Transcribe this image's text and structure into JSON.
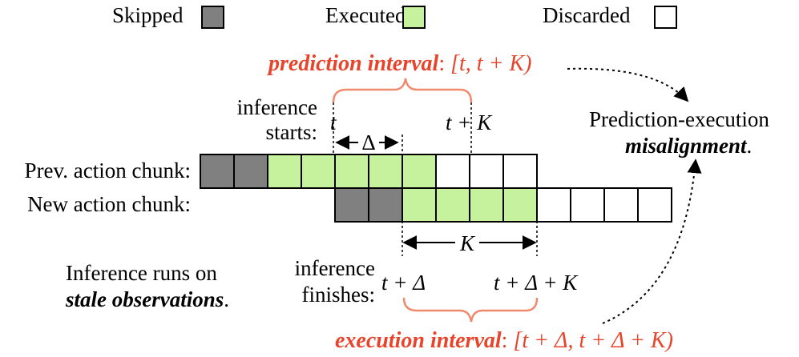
{
  "legend": {
    "skipped": "Skipped",
    "executed": "Executed",
    "discarded": "Discarded"
  },
  "colors": {
    "skipped": "#808080",
    "executed": "#c6f29e",
    "discarded": "#ffffff",
    "accent": "#e8432b",
    "bracket": "#f08a6e"
  },
  "prediction": {
    "label": "prediction interval",
    "colon": ": ",
    "range": "[t, t + K)"
  },
  "execution": {
    "label": "execution interval",
    "colon": ": ",
    "range": "[t + Δ, t + Δ + K)"
  },
  "inference_start": {
    "line1": "inference",
    "line2": "starts:",
    "t": "t",
    "t_plus_k": "t + K",
    "delta": "Δ"
  },
  "inference_finish": {
    "line1": "inference",
    "line2": "finishes:",
    "t_plus_delta": "t + Δ",
    "t_plus_delta_k": "t + Δ + K",
    "k": "K"
  },
  "rows": {
    "prev_label": "Prev. action chunk:",
    "new_label": "New action chunk:",
    "prev_chunk": [
      "skipped",
      "skipped",
      "executed",
      "executed",
      "executed",
      "executed",
      "executed",
      "discarded",
      "discarded",
      "discarded"
    ],
    "new_chunk": [
      "skipped",
      "skipped",
      "executed",
      "executed",
      "executed",
      "executed",
      "discarded",
      "discarded",
      "discarded",
      "discarded"
    ]
  },
  "notes": {
    "misalign_line1": "Prediction-execution",
    "misalign_line2": "misalignment",
    "misalign_end": ".",
    "stale_line1": "Inference runs on",
    "stale_line2": "stale observations",
    "stale_end": "."
  }
}
